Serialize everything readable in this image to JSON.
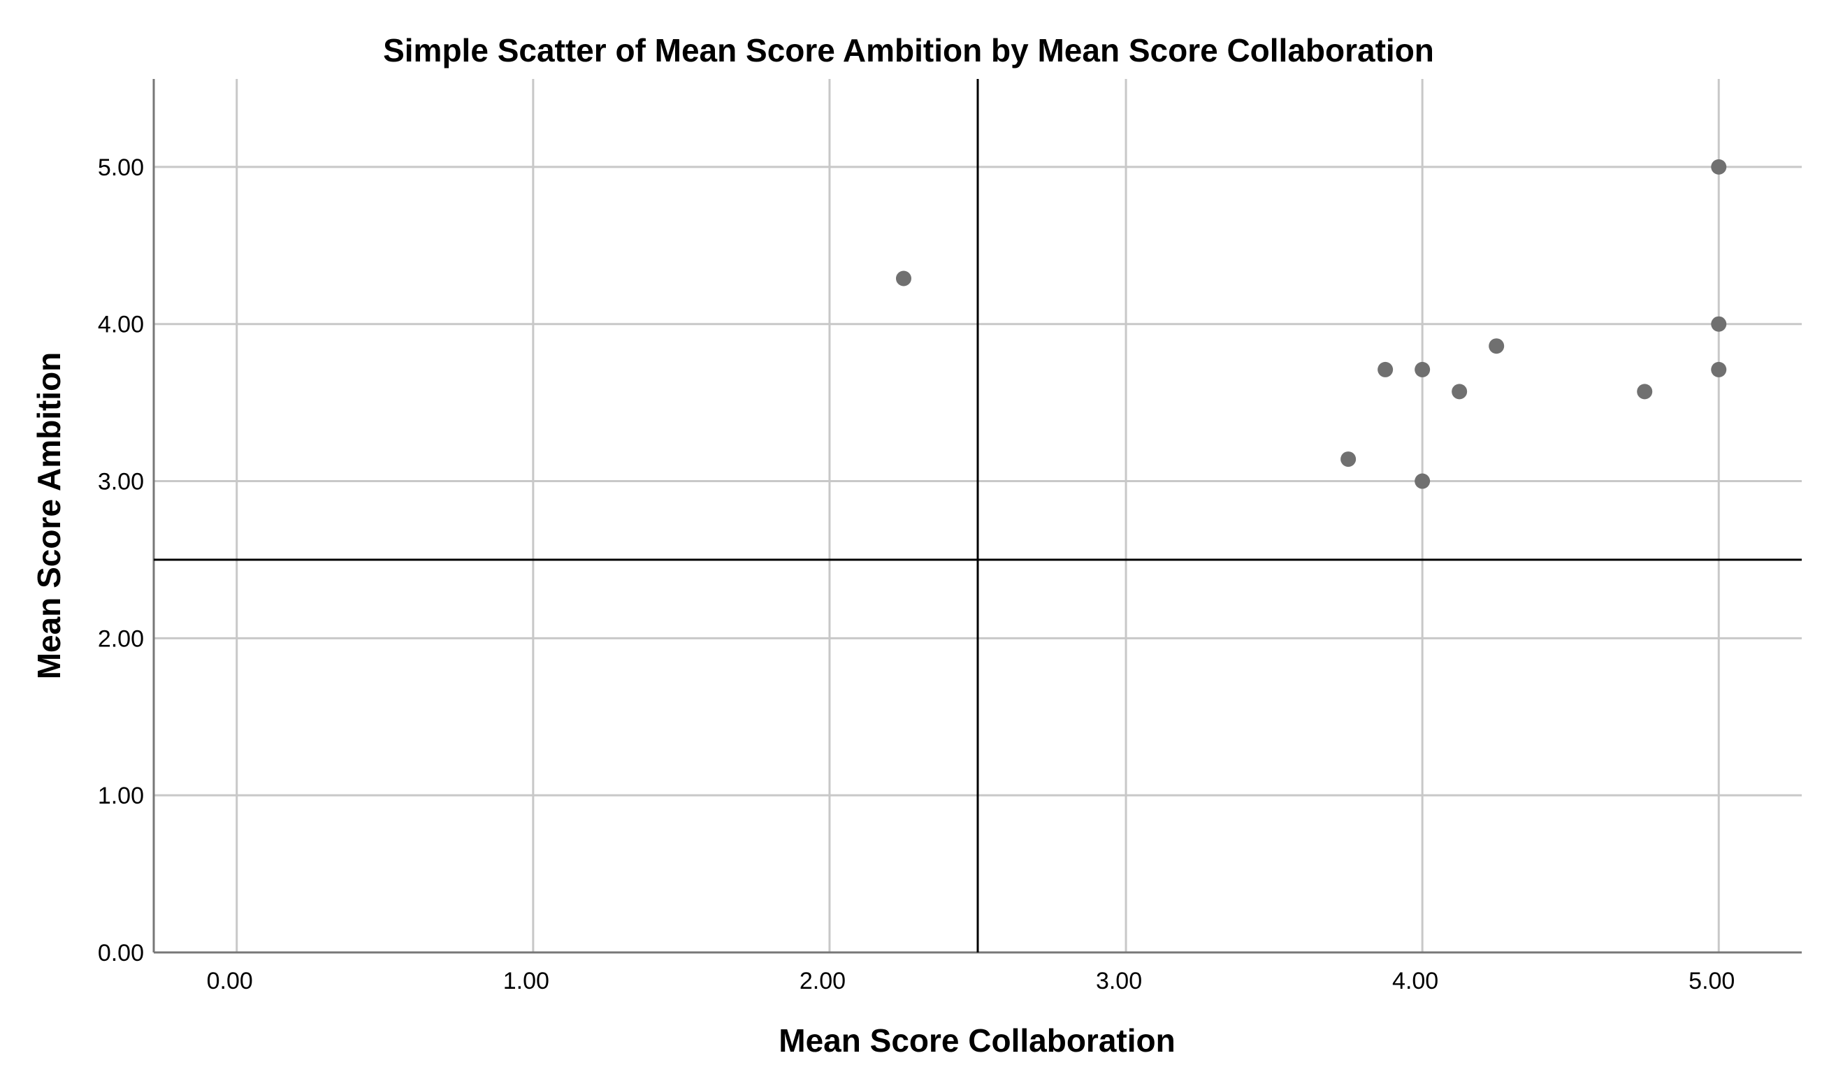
{
  "chart_data": {
    "type": "scatter",
    "title": "Simple Scatter of Mean Score Ambition by Mean Score Collaboration",
    "xlabel": "Mean Score Collaboration",
    "ylabel": "Mean Score Ambition",
    "xlim": [
      -0.28,
      5.28
    ],
    "ylim": [
      0,
      5.56
    ],
    "x_ticks": [
      0,
      1,
      2,
      3,
      4,
      5
    ],
    "y_ticks": [
      0,
      1,
      2,
      3,
      4,
      5
    ],
    "x_tick_labels": [
      "0.00",
      "1.00",
      "2.00",
      "3.00",
      "4.00",
      "5.00"
    ],
    "y_tick_labels": [
      "0.00",
      "1.00",
      "2.00",
      "3.00",
      "4.00",
      "5.00"
    ],
    "grid": true,
    "reference_lines": {
      "x": 2.5,
      "y": 2.5
    },
    "colors": {
      "points": "#707070",
      "grid": "#c8c8c8",
      "reference": "#000000",
      "axes": "#777777"
    },
    "points": [
      {
        "x": 2.25,
        "y": 4.29
      },
      {
        "x": 3.75,
        "y": 3.14
      },
      {
        "x": 3.875,
        "y": 3.71
      },
      {
        "x": 4.0,
        "y": 3.71
      },
      {
        "x": 4.0,
        "y": 3.0
      },
      {
        "x": 4.125,
        "y": 3.57
      },
      {
        "x": 4.25,
        "y": 3.86
      },
      {
        "x": 4.75,
        "y": 3.57
      },
      {
        "x": 5.0,
        "y": 5.0
      },
      {
        "x": 5.0,
        "y": 4.0
      },
      {
        "x": 5.0,
        "y": 3.71
      }
    ]
  }
}
